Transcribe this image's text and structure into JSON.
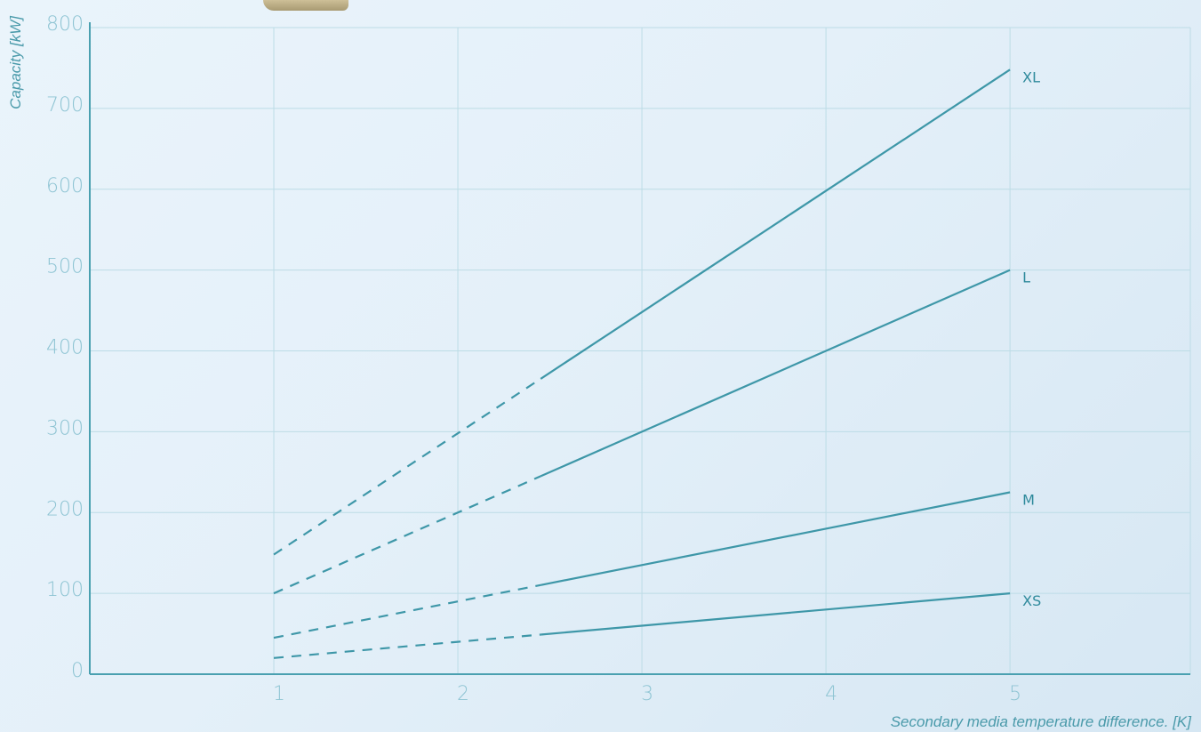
{
  "chart_data": {
    "type": "line",
    "title": "",
    "xlabel": "Secondary media temperature difference. [K]",
    "ylabel": "Capacity [kW]",
    "xlim": [
      0,
      5.98
    ],
    "ylim": [
      0,
      800
    ],
    "x_ticks": [
      "1",
      "2",
      "3",
      "4",
      "5"
    ],
    "y_ticks": [
      "0",
      "100",
      "200",
      "300",
      "400",
      "500",
      "600",
      "700",
      "800"
    ],
    "grid": true,
    "line_color": "#3e97a8",
    "series": [
      {
        "name": "XL",
        "x": [
          1,
          2,
          3,
          4,
          5
        ],
        "values": [
          148,
          298,
          448,
          598,
          748
        ],
        "dashed_until_x": 2.45
      },
      {
        "name": "L",
        "x": [
          1,
          2,
          3,
          4,
          5
        ],
        "values": [
          100,
          200,
          300,
          400,
          500
        ],
        "dashed_until_x": 2.45
      },
      {
        "name": "M",
        "x": [
          1,
          2,
          3,
          4,
          5
        ],
        "values": [
          45,
          90,
          135,
          180,
          225
        ],
        "dashed_until_x": 2.45
      },
      {
        "name": "XS",
        "x": [
          1,
          2,
          3,
          4,
          5
        ],
        "values": [
          20,
          40,
          60,
          80,
          100
        ],
        "dashed_until_x": 2.45
      }
    ]
  }
}
